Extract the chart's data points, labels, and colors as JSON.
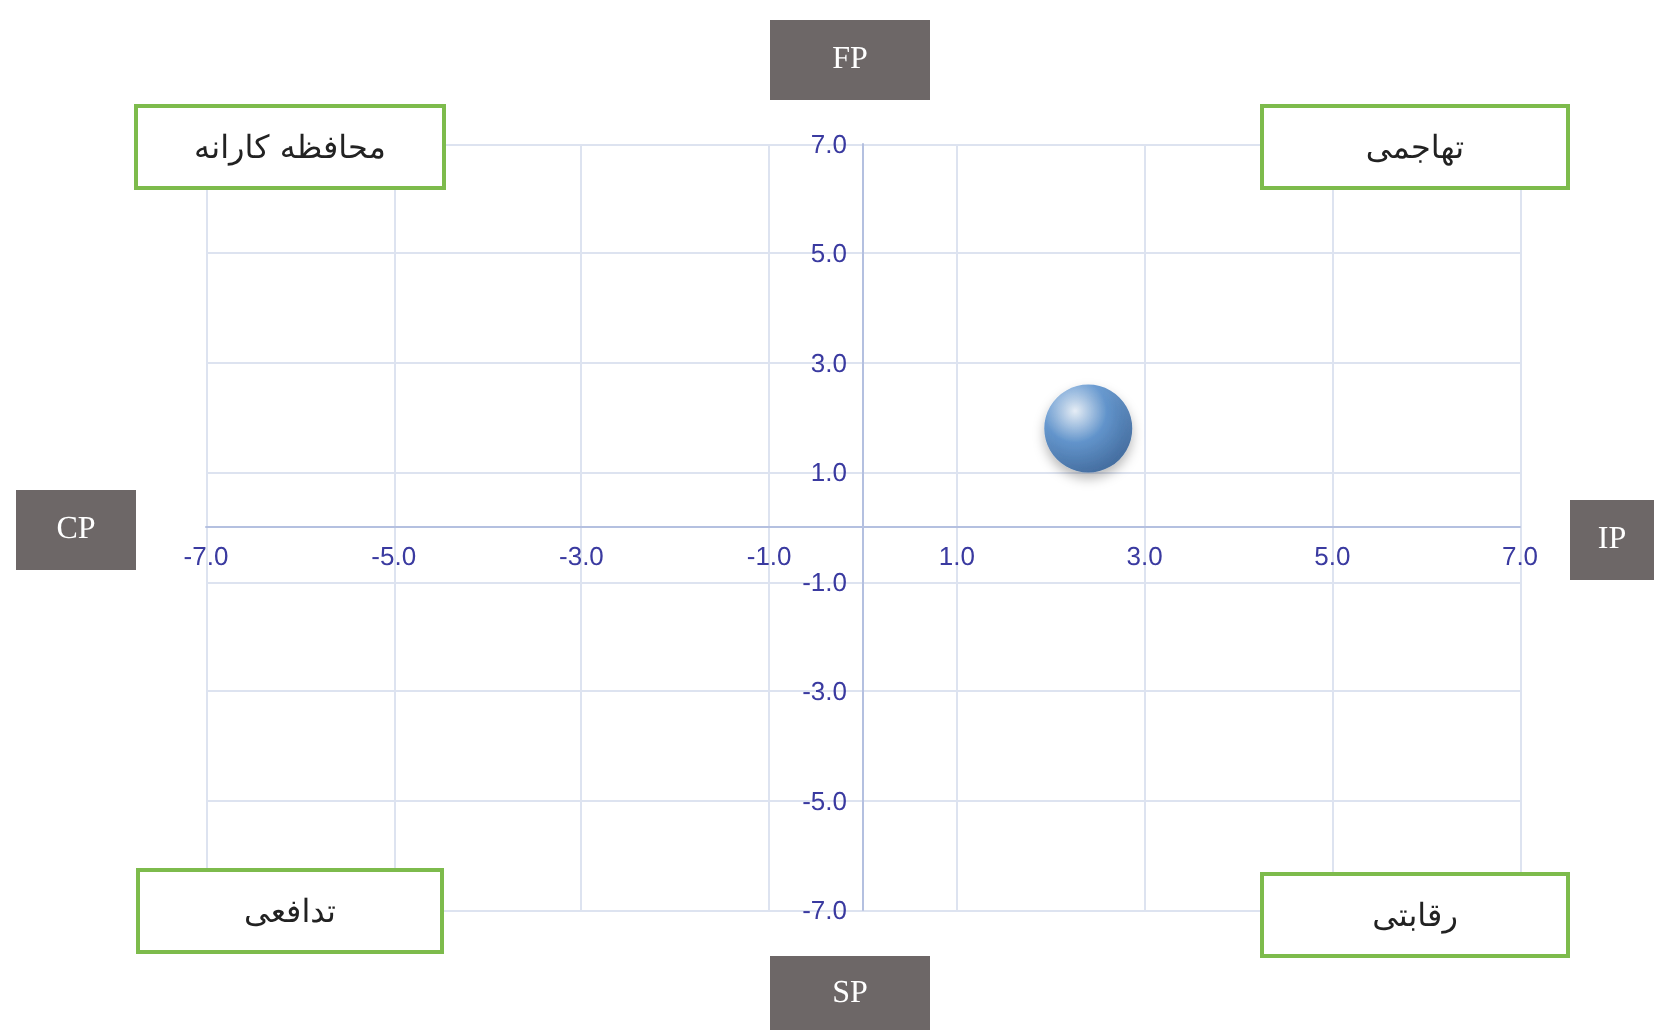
{
  "chart_data": {
    "type": "scatter",
    "x": [
      2.4
    ],
    "values": [
      1.8
    ],
    "color": "#4a86c8",
    "marker": "circle",
    "grid": true,
    "xlim": [
      -7,
      7
    ],
    "ylim": [
      -7,
      7
    ],
    "xticks": [
      {
        "value": -7,
        "label": "-7.0"
      },
      {
        "value": -5,
        "label": "-5.0"
      },
      {
        "value": -3,
        "label": "-3.0"
      },
      {
        "value": -1,
        "label": "-1.0"
      },
      {
        "value": 1,
        "label": "1.0"
      },
      {
        "value": 3,
        "label": "3.0"
      },
      {
        "value": 5,
        "label": "5.0"
      },
      {
        "value": 7,
        "label": "7.0"
      }
    ],
    "yticks": [
      {
        "value": -7,
        "label": "-7.0"
      },
      {
        "value": -5,
        "label": "-5.0"
      },
      {
        "value": -3,
        "label": "-3.0"
      },
      {
        "value": -1,
        "label": "-1.0"
      },
      {
        "value": 1,
        "label": "1.0"
      },
      {
        "value": 3,
        "label": "3.0"
      },
      {
        "value": 5,
        "label": "5.0"
      },
      {
        "value": 7,
        "label": "7.0"
      }
    ],
    "annotations": [
      "FP",
      "SP",
      "CP",
      "IP",
      "محافظه کارانه",
      "تهاجمی",
      "تدافعی",
      "رقابتی"
    ]
  }
}
